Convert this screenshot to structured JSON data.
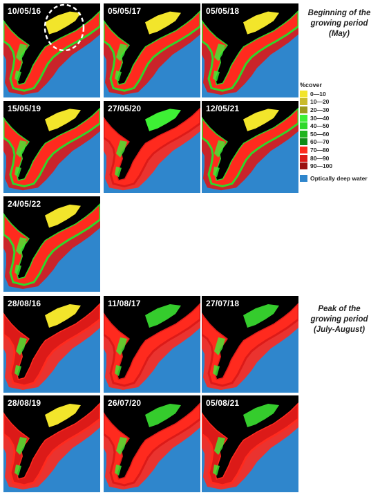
{
  "panels_may": [
    {
      "date": "10/05/16",
      "highlight": true
    },
    {
      "date": "05/05/17"
    },
    {
      "date": "05/05/18"
    },
    {
      "date": "15/05/19"
    },
    {
      "date": "27/05/20"
    },
    {
      "date": "12/05/21"
    },
    {
      "date": "24/05/22"
    }
  ],
  "panels_peak": [
    {
      "date": "28/08/16"
    },
    {
      "date": "11/08/17"
    },
    {
      "date": "27/07/18"
    },
    {
      "date": "28/08/19"
    },
    {
      "date": "26/07/20"
    },
    {
      "date": "05/08/21"
    }
  ],
  "annotations": {
    "may_line1": "Beginning of the",
    "may_line2": "growing period",
    "may_line3": "(May)",
    "peak_line1": "Peak of the",
    "peak_line2": "growing period",
    "peak_line3": "(July-August)"
  },
  "legend": {
    "title": "%cover",
    "items": [
      {
        "label": "0—10",
        "color": "#f2e52b"
      },
      {
        "label": "10—20",
        "color": "#c9bb2a"
      },
      {
        "label": "20—30",
        "color": "#9c9a1c"
      },
      {
        "label": "30—40",
        "color": "#3ef035"
      },
      {
        "label": "40—50",
        "color": "#2ed82a"
      },
      {
        "label": "50—60",
        "color": "#1fb41f"
      },
      {
        "label": "60—70",
        "color": "#118a17"
      },
      {
        "label": "70—80",
        "color": "#ff2a1e"
      },
      {
        "label": "80—90",
        "color": "#dc1a18"
      },
      {
        "label": "90—100",
        "color": "#9a1212"
      }
    ],
    "deep_water": {
      "label": "Optically deep water",
      "color": "#2f86cc"
    }
  }
}
